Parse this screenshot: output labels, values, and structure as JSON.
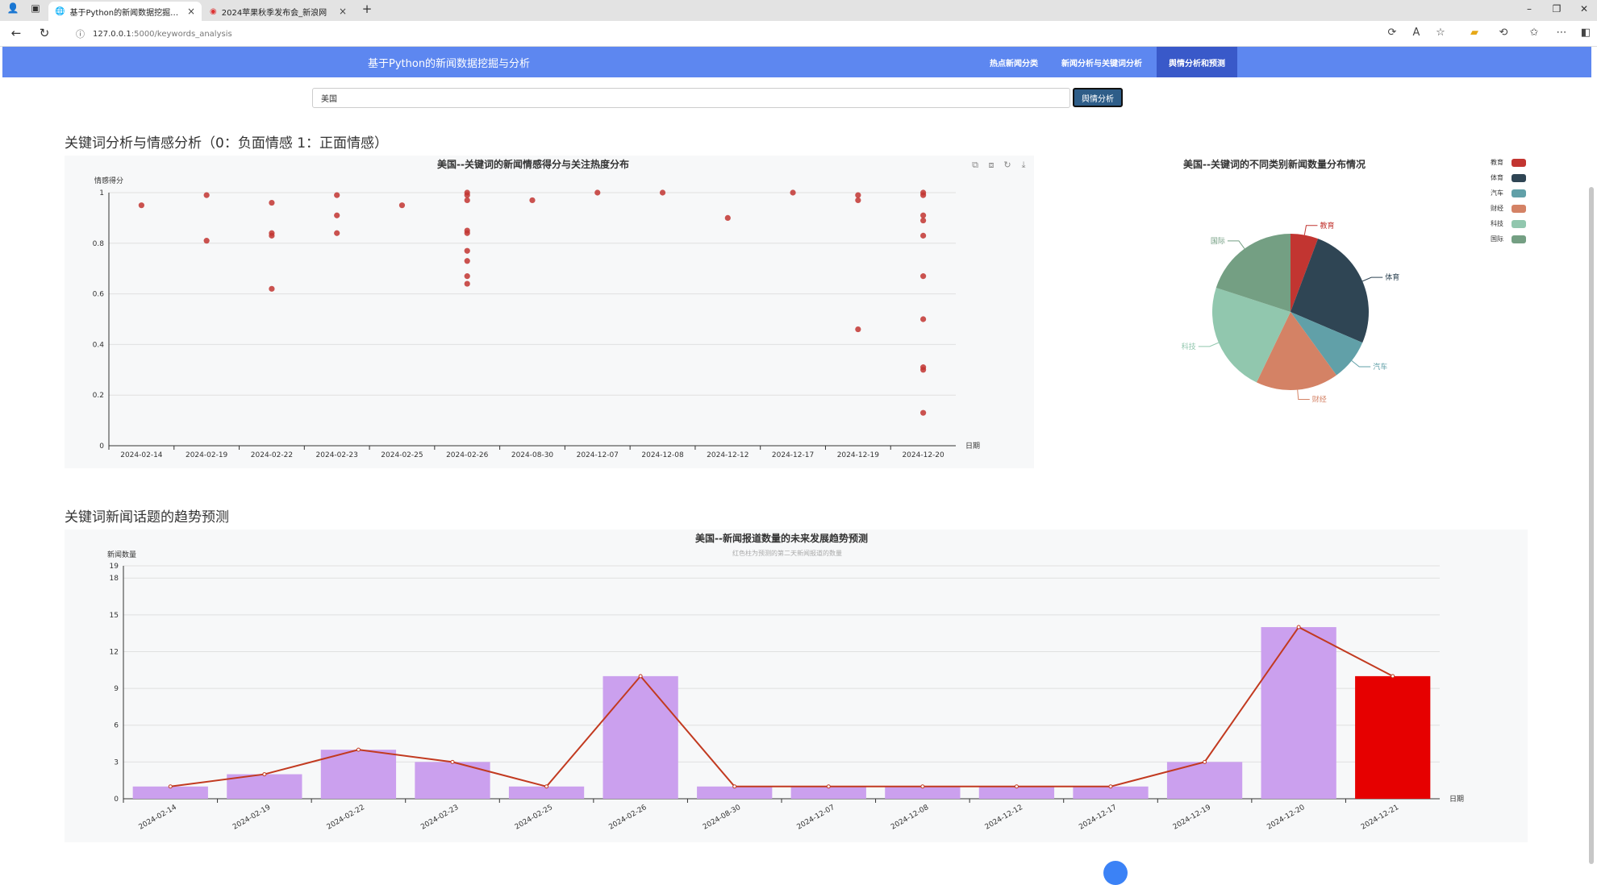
{
  "browser": {
    "tabs": [
      {
        "title": "基于Python的新闻数据挖掘与分析"
      },
      {
        "title": "2024苹果秋季发布会_新浪网"
      }
    ],
    "url_host": "127.0.0.1",
    "url_path": ":5000/keywords_analysis"
  },
  "app": {
    "brand": "基于Python的新闻数据挖掘与分析",
    "nav": [
      "热点新闻分类",
      "新闻分析与关键词分析",
      "舆情分析和预测"
    ]
  },
  "search": {
    "value": "美国",
    "button": "舆情分析"
  },
  "sections": {
    "sentiment": "关键词分析与情感分析（0：负面情感 1：正面情感）",
    "trend": "关键词新闻话题的趋势预测"
  },
  "chart_data": [
    {
      "type": "scatter",
      "title": "美国--关键词的新闻情感得分与关注热度分布",
      "xlabel": "日期",
      "ylabel": "情感得分",
      "ylim": [
        0,
        1
      ],
      "yticks": [
        "0",
        "0.2",
        "0.4",
        "0.6",
        "0.8",
        "1"
      ],
      "categories": [
        "2024-02-14",
        "2024-02-19",
        "2024-02-22",
        "2024-02-23",
        "2024-02-25",
        "2024-02-26",
        "2024-08-30",
        "2024-12-07",
        "2024-12-08",
        "2024-12-12",
        "2024-12-17",
        "2024-12-19",
        "2024-12-20"
      ],
      "points": [
        [
          0,
          0.95
        ],
        [
          1,
          0.99
        ],
        [
          1,
          0.81
        ],
        [
          2,
          0.96
        ],
        [
          2,
          0.84
        ],
        [
          2,
          0.83
        ],
        [
          2,
          0.62
        ],
        [
          3,
          0.99
        ],
        [
          3,
          0.91
        ],
        [
          3,
          0.84
        ],
        [
          4,
          0.95
        ],
        [
          5,
          1.0
        ],
        [
          5,
          0.99
        ],
        [
          5,
          0.97
        ],
        [
          5,
          0.85
        ],
        [
          5,
          0.84
        ],
        [
          5,
          0.77
        ],
        [
          5,
          0.73
        ],
        [
          5,
          0.67
        ],
        [
          5,
          0.64
        ],
        [
          6,
          0.97
        ],
        [
          7,
          1.0
        ],
        [
          8,
          1.0
        ],
        [
          9,
          0.9
        ],
        [
          10,
          1.0
        ],
        [
          11,
          0.99
        ],
        [
          11,
          0.97
        ],
        [
          11,
          0.46
        ],
        [
          12,
          1.0
        ],
        [
          12,
          0.99
        ],
        [
          12,
          0.91
        ],
        [
          12,
          0.89
        ],
        [
          12,
          0.83
        ],
        [
          12,
          0.67
        ],
        [
          12,
          0.5
        ],
        [
          12,
          0.31
        ],
        [
          12,
          0.3
        ],
        [
          12,
          0.13
        ]
      ],
      "color": "#c23531"
    },
    {
      "type": "pie",
      "title": "美国--关键词的不同类别新闻数量分布情况",
      "slices": [
        {
          "label": "教育",
          "value": 2,
          "color": "#c23531"
        },
        {
          "label": "体育",
          "value": 9,
          "color": "#2f4554"
        },
        {
          "label": "汽车",
          "value": 3,
          "color": "#61a0a8"
        },
        {
          "label": "财经",
          "value": 6,
          "color": "#d48265"
        },
        {
          "label": "科技",
          "value": 8,
          "color": "#91c7ae"
        },
        {
          "label": "国际",
          "value": 7,
          "color": "#749f83"
        }
      ]
    },
    {
      "type": "bar",
      "title": "美国--新闻报道数量的未来发展趋势预测",
      "subtitle": "红色柱为预测的第二天新闻报道的数量",
      "xlabel": "日期",
      "ylabel": "新闻数量",
      "ylim": [
        0,
        19
      ],
      "yticks": [
        0,
        3,
        6,
        9,
        12,
        15,
        18,
        19
      ],
      "categories": [
        "2024-02-14",
        "2024-02-19",
        "2024-02-22",
        "2024-02-23",
        "2024-02-25",
        "2024-02-26",
        "2024-08-30",
        "2024-12-07",
        "2024-12-08",
        "2024-12-12",
        "2024-12-17",
        "2024-12-19",
        "2024-12-20",
        "2024-12-21"
      ],
      "values": [
        1,
        2,
        4,
        3,
        1,
        10,
        1,
        1,
        1,
        1,
        1,
        3,
        14,
        10
      ],
      "bar_color": "#cba0ee",
      "predicted_color": "#e60000",
      "line_color": "#c23a20"
    }
  ]
}
